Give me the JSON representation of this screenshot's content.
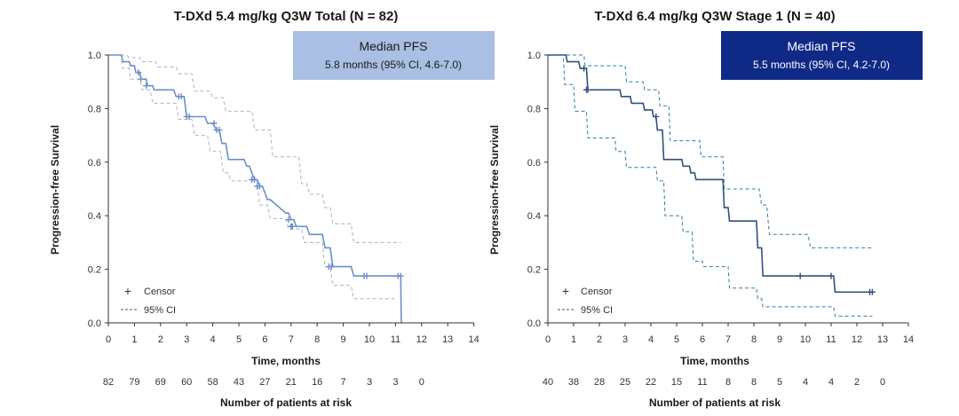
{
  "chart_data": [
    {
      "type": "line",
      "subtype": "kaplan-meier",
      "title": "T-DXd 5.4 mg/kg Q3W Total (N = 82)",
      "xlabel": "Time, months",
      "ylabel": "Progression-free Survival",
      "xlim": [
        0,
        14
      ],
      "ylim": [
        0.0,
        1.0
      ],
      "xticks": [
        "0",
        "1",
        "2",
        "3",
        "4",
        "5",
        "6",
        "7",
        "8",
        "9",
        "10",
        "11",
        "12",
        "13",
        "14"
      ],
      "yticks": [
        "0.0",
        "0.2",
        "0.4",
        "0.6",
        "0.8",
        "1.0"
      ],
      "grid": false,
      "colors": {
        "curve": "#6b8fcb",
        "ci": "#a7b3c4",
        "box_fill": "#a9bfe3",
        "box_text": "#1a1a1a"
      },
      "median_box": {
        "title": "Median PFS",
        "text": "5.8 months (95% CI, 4.6-7.0)"
      },
      "legend": {
        "censor_label": "Censor",
        "ci_label": "95% CI",
        "censor_symbol": "+"
      },
      "risk_table": {
        "label": "Number of patients at risk",
        "times": [
          0,
          1,
          2,
          3,
          4,
          5,
          6,
          7,
          8,
          9,
          10,
          11,
          12
        ],
        "counts": [
          "82",
          "79",
          "69",
          "60",
          "58",
          "43",
          "27",
          "21",
          "16",
          "7",
          "3",
          "3",
          "0"
        ]
      },
      "series": [
        {
          "role": "estimate",
          "x": [
            0,
            0.5,
            0.55,
            0.8,
            0.85,
            1.0,
            1.05,
            1.2,
            1.25,
            1.45,
            1.5,
            1.7,
            1.75,
            2.5,
            2.6,
            2.9,
            3.0,
            3.7,
            3.8,
            4.0,
            4.15,
            4.25,
            4.35,
            4.5,
            4.6,
            5.2,
            5.3,
            5.4,
            5.6,
            5.7,
            5.8,
            5.9,
            6.1,
            6.2,
            6.8,
            6.9,
            7.0,
            7.1,
            7.2,
            7.6,
            7.7,
            8.2,
            8.3,
            8.5,
            8.6,
            9.3,
            9.4,
            11.2,
            11.22
          ],
          "y": [
            1.0,
            1.0,
            0.975,
            0.975,
            0.96,
            0.96,
            0.935,
            0.935,
            0.91,
            0.91,
            0.885,
            0.885,
            0.87,
            0.87,
            0.845,
            0.845,
            0.77,
            0.77,
            0.745,
            0.745,
            0.72,
            0.72,
            0.67,
            0.67,
            0.61,
            0.61,
            0.585,
            0.585,
            0.535,
            0.535,
            0.51,
            0.51,
            0.46,
            0.46,
            0.41,
            0.41,
            0.385,
            0.385,
            0.36,
            0.36,
            0.33,
            0.33,
            0.28,
            0.28,
            0.21,
            0.21,
            0.175,
            0.175,
            0.0
          ]
        },
        {
          "role": "ci_upper",
          "x": [
            0,
            0.7,
            0.8,
            1.2,
            1.3,
            1.8,
            1.9,
            2.6,
            2.7,
            3.2,
            3.3,
            3.9,
            4.0,
            4.4,
            4.5,
            5.5,
            5.6,
            6.2,
            6.3,
            7.3,
            7.4,
            7.6,
            7.7,
            8.2,
            8.3,
            8.5,
            8.6,
            9.3,
            9.4,
            11.2
          ],
          "y": [
            1.0,
            1.0,
            0.99,
            0.99,
            0.975,
            0.975,
            0.955,
            0.955,
            0.93,
            0.93,
            0.865,
            0.865,
            0.84,
            0.84,
            0.79,
            0.79,
            0.72,
            0.72,
            0.62,
            0.62,
            0.52,
            0.52,
            0.48,
            0.48,
            0.43,
            0.43,
            0.37,
            0.37,
            0.3,
            0.3
          ]
        },
        {
          "role": "ci_lower",
          "x": [
            0,
            0.5,
            0.55,
            0.8,
            0.85,
            1.2,
            1.3,
            1.6,
            1.7,
            2.6,
            2.7,
            3.2,
            3.3,
            3.8,
            3.9,
            4.3,
            4.4,
            4.6,
            4.7,
            5.7,
            5.8,
            6.1,
            6.2,
            6.8,
            6.9,
            7.4,
            7.5,
            8.2,
            8.3,
            8.5,
            8.6,
            9.3,
            9.4,
            11.0
          ],
          "y": [
            1.0,
            1.0,
            0.95,
            0.95,
            0.91,
            0.91,
            0.87,
            0.87,
            0.82,
            0.82,
            0.76,
            0.76,
            0.7,
            0.7,
            0.64,
            0.64,
            0.56,
            0.56,
            0.53,
            0.53,
            0.44,
            0.44,
            0.39,
            0.39,
            0.35,
            0.35,
            0.3,
            0.3,
            0.21,
            0.21,
            0.14,
            0.14,
            0.09,
            0.09
          ]
        }
      ],
      "censor_points": {
        "x": [
          1.15,
          1.25,
          1.45,
          2.7,
          2.8,
          3.0,
          3.1,
          4.05,
          4.15,
          4.25,
          5.5,
          5.6,
          5.7,
          5.8,
          6.9,
          7.0,
          7.05,
          8.45,
          8.55,
          9.8,
          9.9,
          11.1,
          11.2
        ],
        "y": [
          0.935,
          0.91,
          0.885,
          0.845,
          0.845,
          0.77,
          0.77,
          0.745,
          0.72,
          0.72,
          0.535,
          0.535,
          0.51,
          0.51,
          0.385,
          0.36,
          0.36,
          0.21,
          0.21,
          0.175,
          0.175,
          0.175,
          0.175
        ]
      }
    },
    {
      "type": "line",
      "subtype": "kaplan-meier",
      "title": "T-DXd 6.4 mg/kg Q3W Stage 1 (N = 40)",
      "xlabel": "Time, months",
      "ylabel": "Progression-free Survival",
      "xlim": [
        0,
        14
      ],
      "ylim": [
        0.0,
        1.0
      ],
      "xticks": [
        "0",
        "1",
        "2",
        "3",
        "4",
        "5",
        "6",
        "7",
        "8",
        "9",
        "10",
        "11",
        "12",
        "13",
        "14"
      ],
      "yticks": [
        "0.0",
        "0.2",
        "0.4",
        "0.6",
        "0.8",
        "1.0"
      ],
      "grid": false,
      "colors": {
        "curve": "#34507e",
        "ci": "#2f7da8",
        "box_fill": "#0f2a86",
        "box_text": "#ffffff"
      },
      "median_box": {
        "title": "Median PFS",
        "text": "5.5 months (95% CI, 4.2-7.0)"
      },
      "legend": {
        "censor_label": "Censor",
        "ci_label": "95% CI",
        "censor_symbol": "+"
      },
      "risk_table": {
        "label": "Number of patients at risk",
        "times": [
          0,
          1,
          2,
          3,
          4,
          5,
          6,
          7,
          8,
          9,
          10,
          11,
          12,
          13
        ],
        "counts": [
          "40",
          "38",
          "28",
          "25",
          "22",
          "15",
          "11",
          "8",
          "8",
          "5",
          "4",
          "4",
          "2",
          "0"
        ]
      },
      "series": [
        {
          "role": "estimate",
          "x": [
            0,
            0.7,
            0.75,
            1.2,
            1.25,
            1.5,
            1.55,
            2.8,
            2.85,
            3.2,
            3.25,
            3.7,
            3.75,
            4.05,
            4.1,
            4.2,
            4.25,
            4.45,
            4.5,
            5.2,
            5.25,
            5.5,
            5.55,
            5.7,
            5.75,
            6.8,
            6.85,
            7.0,
            7.05,
            8.1,
            8.15,
            8.3,
            8.35,
            11.1,
            11.15,
            12.6
          ],
          "y": [
            1.0,
            1.0,
            0.975,
            0.975,
            0.95,
            0.95,
            0.87,
            0.87,
            0.845,
            0.845,
            0.82,
            0.82,
            0.795,
            0.795,
            0.77,
            0.77,
            0.72,
            0.72,
            0.61,
            0.61,
            0.585,
            0.585,
            0.56,
            0.56,
            0.535,
            0.535,
            0.43,
            0.43,
            0.38,
            0.38,
            0.28,
            0.28,
            0.175,
            0.175,
            0.115,
            0.115
          ]
        },
        {
          "role": "ci_upper",
          "x": [
            0,
            1.4,
            1.45,
            3.0,
            3.05,
            3.7,
            3.75,
            4.3,
            4.35,
            4.7,
            4.75,
            5.9,
            5.95,
            6.8,
            6.85,
            8.2,
            8.3,
            8.5,
            8.6,
            10.1,
            10.2,
            12.6
          ],
          "y": [
            1.0,
            1.0,
            0.96,
            0.96,
            0.9,
            0.9,
            0.87,
            0.87,
            0.81,
            0.81,
            0.68,
            0.68,
            0.62,
            0.62,
            0.5,
            0.5,
            0.44,
            0.44,
            0.33,
            0.33,
            0.28,
            0.28
          ]
        },
        {
          "role": "ci_lower",
          "x": [
            0,
            0.6,
            0.65,
            1.0,
            1.05,
            1.5,
            1.55,
            2.6,
            2.65,
            3.0,
            3.05,
            4.2,
            4.25,
            4.5,
            4.55,
            5.2,
            5.25,
            5.6,
            5.65,
            6.0,
            6.05,
            7.0,
            7.05,
            8.1,
            8.15,
            8.3,
            8.35,
            11.1,
            11.15,
            12.6
          ],
          "y": [
            1.0,
            1.0,
            0.89,
            0.89,
            0.79,
            0.79,
            0.69,
            0.69,
            0.64,
            0.64,
            0.58,
            0.58,
            0.53,
            0.53,
            0.4,
            0.4,
            0.34,
            0.34,
            0.23,
            0.23,
            0.21,
            0.21,
            0.13,
            0.13,
            0.09,
            0.09,
            0.06,
            0.06,
            0.025,
            0.025
          ]
        }
      ],
      "censor_points": {
        "x": [
          1.4,
          1.5,
          1.55,
          4.2,
          9.8,
          11.0,
          12.5,
          12.6
        ],
        "y": [
          0.95,
          0.87,
          0.87,
          0.77,
          0.175,
          0.175,
          0.115,
          0.115
        ]
      }
    }
  ]
}
